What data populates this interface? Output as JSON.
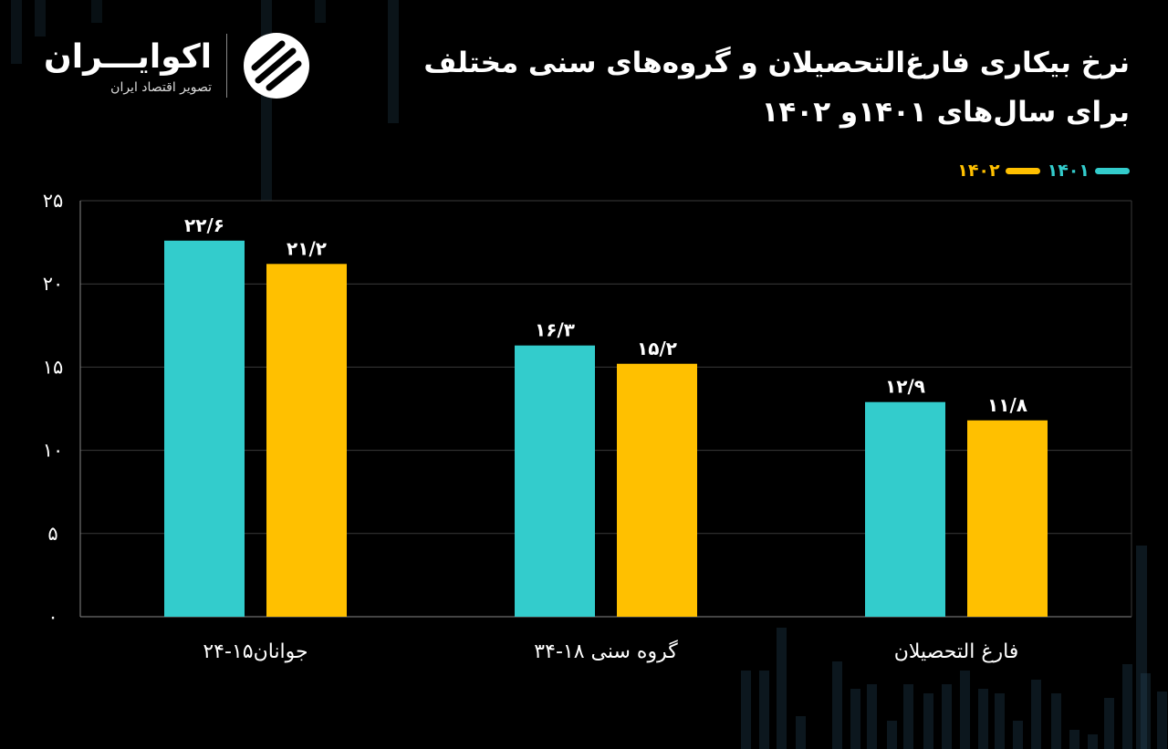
{
  "title_line1": "نرخ بیکاری فارغ‌التحصیلان و گروه‌های سنی مختلف",
  "title_line2": "برای سال‌های ۱۴۰۱و ۱۴۰۲",
  "logo": {
    "name": "اکوایـــران",
    "subtitle": "تصویر اقتصاد ایران"
  },
  "colors": {
    "series_1401": "#33CCCC",
    "series_1402": "#FFC000",
    "background": "#000000",
    "grid": "#3a3a3a"
  },
  "chart_data": {
    "type": "bar",
    "categories": [
      "جوانان۱۵-۲۴",
      "گروه سنی ۱۸-۳۴",
      "فارغ التحصیلان"
    ],
    "series": [
      {
        "name": "۱۴۰۱",
        "values": [
          22.6,
          16.3,
          12.9
        ],
        "labels": [
          "۲۲/۶",
          "۱۶/۳",
          "۱۲/۹"
        ]
      },
      {
        "name": "۱۴۰۲",
        "values": [
          21.2,
          15.2,
          11.8
        ],
        "labels": [
          "۲۱/۲",
          "۱۵/۲",
          "۱۱/۸"
        ]
      }
    ],
    "y_ticks": [
      "۰",
      "۵",
      "۱۰",
      "۱۵",
      "۲۰",
      "۲۵"
    ],
    "ylim": [
      0,
      25
    ],
    "grid": true,
    "legend_position": "top-right"
  }
}
